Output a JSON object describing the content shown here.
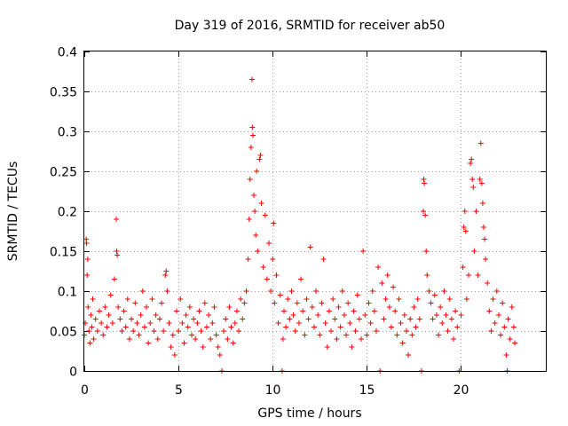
{
  "chart_data": {
    "type": "scatter",
    "title": "Day 319 of 2016, SRMTID for receiver ab50",
    "xlabel": "GPS time / hours",
    "ylabel": "SRMTID / TECUs",
    "xlim": [
      0,
      24.5
    ],
    "ylim": [
      0,
      0.4
    ],
    "xticks": [
      0,
      5,
      10,
      15,
      20
    ],
    "xtick_labels": [
      "0",
      "5",
      "10",
      "15",
      "20"
    ],
    "yticks": [
      0,
      0.05,
      0.1,
      0.15,
      0.2,
      0.25,
      0.3,
      0.35,
      0.4
    ],
    "ytick_labels": [
      "0",
      "0.05",
      "0.1",
      "0.15",
      "0.2",
      "0.25",
      "0.3",
      "0.35",
      "0.4"
    ],
    "grid": true,
    "marker": "plus",
    "series": [
      {
        "name": "SRMTID",
        "color": "#ff0000",
        "points": [
          [
            0.0,
            0.045
          ],
          [
            0.05,
            0.06
          ],
          [
            0.1,
            0.165
          ],
          [
            0.12,
            0.16
          ],
          [
            0.15,
            0.12
          ],
          [
            0.18,
            0.14
          ],
          [
            0.2,
            0.08
          ],
          [
            0.25,
            0.05
          ],
          [
            0.3,
            0.035
          ],
          [
            0.35,
            0.07
          ],
          [
            0.4,
            0.055
          ],
          [
            0.45,
            0.09
          ],
          [
            0.5,
            0.04
          ],
          [
            0.6,
            0.065
          ],
          [
            0.7,
            0.05
          ],
          [
            0.8,
            0.075
          ],
          [
            0.9,
            0.06
          ],
          [
            1.0,
            0.045
          ],
          [
            1.1,
            0.08
          ],
          [
            1.2,
            0.055
          ],
          [
            1.3,
            0.07
          ],
          [
            1.4,
            0.095
          ],
          [
            1.5,
            0.06
          ],
          [
            1.6,
            0.115
          ],
          [
            1.7,
            0.19
          ],
          [
            1.72,
            0.15
          ],
          [
            1.75,
            0.145
          ],
          [
            1.8,
            0.08
          ],
          [
            1.9,
            0.065
          ],
          [
            2.0,
            0.05
          ],
          [
            2.1,
            0.075
          ],
          [
            2.2,
            0.055
          ],
          [
            2.3,
            0.09
          ],
          [
            2.4,
            0.04
          ],
          [
            2.5,
            0.065
          ],
          [
            2.6,
            0.05
          ],
          [
            2.7,
            0.085
          ],
          [
            2.8,
            0.06
          ],
          [
            2.9,
            0.045
          ],
          [
            3.0,
            0.07
          ],
          [
            3.1,
            0.1
          ],
          [
            3.2,
            0.055
          ],
          [
            3.3,
            0.08
          ],
          [
            3.4,
            0.035
          ],
          [
            3.5,
            0.06
          ],
          [
            3.6,
            0.09
          ],
          [
            3.7,
            0.05
          ],
          [
            3.8,
            0.07
          ],
          [
            3.9,
            0.04
          ],
          [
            4.0,
            0.065
          ],
          [
            4.1,
            0.085
          ],
          [
            4.2,
            0.05
          ],
          [
            4.3,
            0.12
          ],
          [
            4.35,
            0.125
          ],
          [
            4.4,
            0.1
          ],
          [
            4.5,
            0.06
          ],
          [
            4.6,
            0.03
          ],
          [
            4.7,
            0.045
          ],
          [
            4.8,
            0.02
          ],
          [
            4.9,
            0.075
          ],
          [
            5.0,
            0.05
          ],
          [
            5.1,
            0.09
          ],
          [
            5.2,
            0.06
          ],
          [
            5.3,
            0.035
          ],
          [
            5.4,
            0.07
          ],
          [
            5.5,
            0.055
          ],
          [
            5.6,
            0.08
          ],
          [
            5.7,
            0.045
          ],
          [
            5.8,
            0.065
          ],
          [
            5.9,
            0.04
          ],
          [
            6.0,
            0.06
          ],
          [
            6.1,
            0.075
          ],
          [
            6.2,
            0.05
          ],
          [
            6.3,
            0.03
          ],
          [
            6.4,
            0.085
          ],
          [
            6.5,
            0.055
          ],
          [
            6.6,
            0.07
          ],
          [
            6.7,
            0.04
          ],
          [
            6.8,
            0.06
          ],
          [
            6.9,
            0.08
          ],
          [
            7.0,
            0.045
          ],
          [
            7.1,
            0.03
          ],
          [
            7.2,
            0.02
          ],
          [
            7.3,
            0.0
          ],
          [
            7.4,
            0.05
          ],
          [
            7.5,
            0.065
          ],
          [
            7.6,
            0.04
          ],
          [
            7.7,
            0.08
          ],
          [
            7.8,
            0.055
          ],
          [
            7.9,
            0.035
          ],
          [
            8.0,
            0.06
          ],
          [
            8.1,
            0.075
          ],
          [
            8.2,
            0.05
          ],
          [
            8.3,
            0.09
          ],
          [
            8.4,
            0.065
          ],
          [
            8.5,
            0.085
          ],
          [
            8.6,
            0.1
          ],
          [
            8.7,
            0.14
          ],
          [
            8.75,
            0.19
          ],
          [
            8.8,
            0.24
          ],
          [
            8.85,
            0.28
          ],
          [
            8.9,
            0.365
          ],
          [
            8.92,
            0.305
          ],
          [
            8.95,
            0.295
          ],
          [
            9.0,
            0.22
          ],
          [
            9.05,
            0.2
          ],
          [
            9.1,
            0.17
          ],
          [
            9.15,
            0.25
          ],
          [
            9.2,
            0.15
          ],
          [
            9.3,
            0.265
          ],
          [
            9.35,
            0.27
          ],
          [
            9.4,
            0.21
          ],
          [
            9.5,
            0.13
          ],
          [
            9.6,
            0.195
          ],
          [
            9.7,
            0.115
          ],
          [
            9.8,
            0.16
          ],
          [
            9.9,
            0.1
          ],
          [
            10.0,
            0.14
          ],
          [
            10.05,
            0.185
          ],
          [
            10.1,
            0.085
          ],
          [
            10.2,
            0.12
          ],
          [
            10.3,
            0.06
          ],
          [
            10.4,
            0.095
          ],
          [
            10.5,
            0.0
          ],
          [
            10.55,
            0.04
          ],
          [
            10.6,
            0.075
          ],
          [
            10.7,
            0.055
          ],
          [
            10.8,
            0.09
          ],
          [
            10.9,
            0.065
          ],
          [
            11.0,
            0.1
          ],
          [
            11.1,
            0.07
          ],
          [
            11.2,
            0.05
          ],
          [
            11.3,
            0.085
          ],
          [
            11.4,
            0.06
          ],
          [
            11.5,
            0.115
          ],
          [
            11.6,
            0.075
          ],
          [
            11.7,
            0.045
          ],
          [
            11.8,
            0.09
          ],
          [
            11.9,
            0.065
          ],
          [
            12.0,
            0.155
          ],
          [
            12.1,
            0.08
          ],
          [
            12.2,
            0.055
          ],
          [
            12.3,
            0.1
          ],
          [
            12.4,
            0.07
          ],
          [
            12.5,
            0.045
          ],
          [
            12.6,
            0.085
          ],
          [
            12.7,
            0.14
          ],
          [
            12.8,
            0.06
          ],
          [
            12.9,
            0.03
          ],
          [
            13.0,
            0.075
          ],
          [
            13.1,
            0.05
          ],
          [
            13.2,
            0.09
          ],
          [
            13.3,
            0.065
          ],
          [
            13.4,
            0.04
          ],
          [
            13.5,
            0.08
          ],
          [
            13.6,
            0.055
          ],
          [
            13.7,
            0.1
          ],
          [
            13.8,
            0.07
          ],
          [
            13.9,
            0.045
          ],
          [
            14.0,
            0.085
          ],
          [
            14.1,
            0.06
          ],
          [
            14.2,
            0.03
          ],
          [
            14.3,
            0.075
          ],
          [
            14.4,
            0.05
          ],
          [
            14.5,
            0.095
          ],
          [
            14.6,
            0.065
          ],
          [
            14.7,
            0.04
          ],
          [
            14.8,
            0.15
          ],
          [
            14.9,
            0.07
          ],
          [
            15.0,
            0.045
          ],
          [
            15.1,
            0.085
          ],
          [
            15.2,
            0.06
          ],
          [
            15.3,
            0.1
          ],
          [
            15.4,
            0.075
          ],
          [
            15.5,
            0.05
          ],
          [
            15.6,
            0.13
          ],
          [
            15.7,
            0.0
          ],
          [
            15.8,
            0.11
          ],
          [
            15.9,
            0.065
          ],
          [
            16.0,
            0.09
          ],
          [
            16.1,
            0.12
          ],
          [
            16.2,
            0.08
          ],
          [
            16.3,
            0.055
          ],
          [
            16.4,
            0.105
          ],
          [
            16.5,
            0.075
          ],
          [
            16.6,
            0.045
          ],
          [
            16.7,
            0.09
          ],
          [
            16.8,
            0.06
          ],
          [
            16.9,
            0.035
          ],
          [
            17.0,
            0.07
          ],
          [
            17.1,
            0.05
          ],
          [
            17.2,
            0.02
          ],
          [
            17.3,
            0.065
          ],
          [
            17.4,
            0.045
          ],
          [
            17.5,
            0.08
          ],
          [
            17.6,
            0.055
          ],
          [
            17.7,
            0.09
          ],
          [
            17.8,
            0.065
          ],
          [
            17.9,
            0.0
          ],
          [
            18.0,
            0.2
          ],
          [
            18.02,
            0.24
          ],
          [
            18.05,
            0.235
          ],
          [
            18.1,
            0.195
          ],
          [
            18.15,
            0.15
          ],
          [
            18.2,
            0.12
          ],
          [
            18.3,
            0.1
          ],
          [
            18.4,
            0.085
          ],
          [
            18.5,
            0.065
          ],
          [
            18.6,
            0.095
          ],
          [
            18.7,
            0.07
          ],
          [
            18.8,
            0.045
          ],
          [
            18.9,
            0.08
          ],
          [
            19.0,
            0.06
          ],
          [
            19.1,
            0.1
          ],
          [
            19.2,
            0.07
          ],
          [
            19.3,
            0.05
          ],
          [
            19.4,
            0.09
          ],
          [
            19.5,
            0.065
          ],
          [
            19.6,
            0.04
          ],
          [
            19.7,
            0.075
          ],
          [
            19.8,
            0.055
          ],
          [
            19.9,
            0.0
          ],
          [
            20.0,
            0.07
          ],
          [
            20.1,
            0.13
          ],
          [
            20.15,
            0.18
          ],
          [
            20.2,
            0.2
          ],
          [
            20.25,
            0.175
          ],
          [
            20.3,
            0.09
          ],
          [
            20.4,
            0.12
          ],
          [
            20.5,
            0.26
          ],
          [
            20.55,
            0.265
          ],
          [
            20.6,
            0.24
          ],
          [
            20.65,
            0.23
          ],
          [
            20.7,
            0.15
          ],
          [
            20.8,
            0.2
          ],
          [
            20.9,
            0.12
          ],
          [
            21.0,
            0.24
          ],
          [
            21.05,
            0.285
          ],
          [
            21.1,
            0.235
          ],
          [
            21.15,
            0.21
          ],
          [
            21.2,
            0.18
          ],
          [
            21.25,
            0.165
          ],
          [
            21.3,
            0.14
          ],
          [
            21.4,
            0.11
          ],
          [
            21.5,
            0.075
          ],
          [
            21.6,
            0.05
          ],
          [
            21.7,
            0.09
          ],
          [
            21.8,
            0.06
          ],
          [
            21.9,
            0.1
          ],
          [
            22.0,
            0.07
          ],
          [
            22.1,
            0.045
          ],
          [
            22.2,
            0.085
          ],
          [
            22.3,
            0.055
          ],
          [
            22.4,
            0.02
          ],
          [
            22.45,
            0.0
          ],
          [
            22.5,
            0.065
          ],
          [
            22.6,
            0.04
          ],
          [
            22.7,
            0.08
          ],
          [
            22.8,
            0.055
          ],
          [
            22.85,
            0.035
          ]
        ]
      }
    ]
  }
}
